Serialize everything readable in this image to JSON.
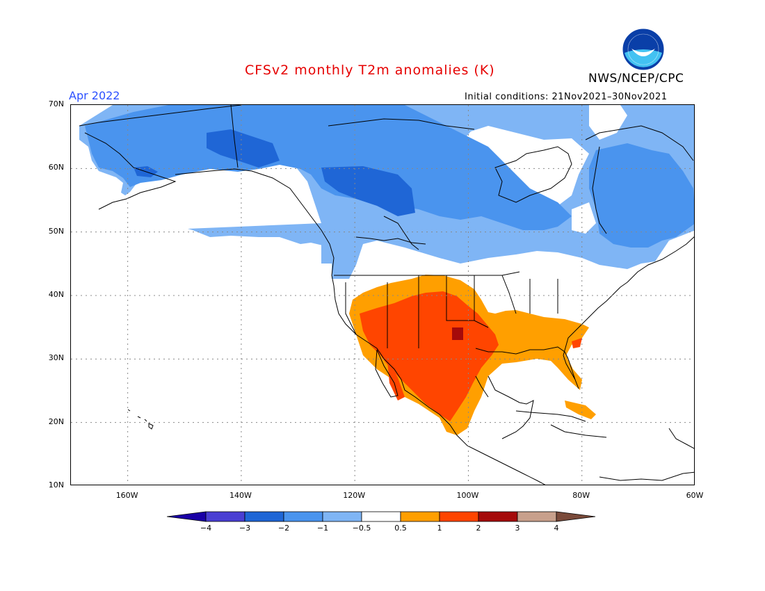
{
  "header": {
    "title": "CFSv2 monthly T2m anomalies (K)",
    "month": "Apr 2022",
    "agency": "NWS/NCEP/CPC",
    "initial_conditions": "Initial conditions: 21Nov2021–30Nov2021",
    "logo_text": "NOAA"
  },
  "map": {
    "projection": "lat-lon",
    "lat_range": [
      10,
      70
    ],
    "lon_range": [
      -170,
      -60
    ],
    "lat_labels": [
      "70N",
      "60N",
      "50N",
      "40N",
      "30N",
      "20N",
      "10N"
    ],
    "lon_labels": [
      "160W",
      "140W",
      "120W",
      "100W",
      "80W",
      "60W"
    ],
    "gridlines": "dotted",
    "regions": [
      {
        "name": "northern cold anomaly",
        "category": "-1 to -0.5",
        "color": "#7fb5f5"
      },
      {
        "name": "canada core",
        "category": "-2 to -1",
        "color": "#4a94ee"
      },
      {
        "name": "western canada minimum",
        "category": "-3 to -2",
        "color": "#1f66d6"
      },
      {
        "name": "southwest warm anomaly",
        "category": "1 to 2",
        "color": "#ff4500"
      },
      {
        "name": "southeast warm anomaly",
        "category": "0.5 to 1",
        "color": "#ff9f00"
      },
      {
        "name": "southern plains maximum",
        "category": "2 to 3",
        "color": "#a50a0a"
      }
    ]
  },
  "colorbar": {
    "labels": [
      "−4",
      "−3",
      "−2",
      "−1",
      "−0.5",
      "0.5",
      "1",
      "2",
      "3",
      "4"
    ],
    "colors": [
      "#1a00a6",
      "#4a3fd3",
      "#1f66d6",
      "#4a94ee",
      "#7fb5f5",
      "#ffffff",
      "#ff9f00",
      "#ff4500",
      "#a50a0a",
      "#c8a08c",
      "#7a4a3a"
    ]
  }
}
